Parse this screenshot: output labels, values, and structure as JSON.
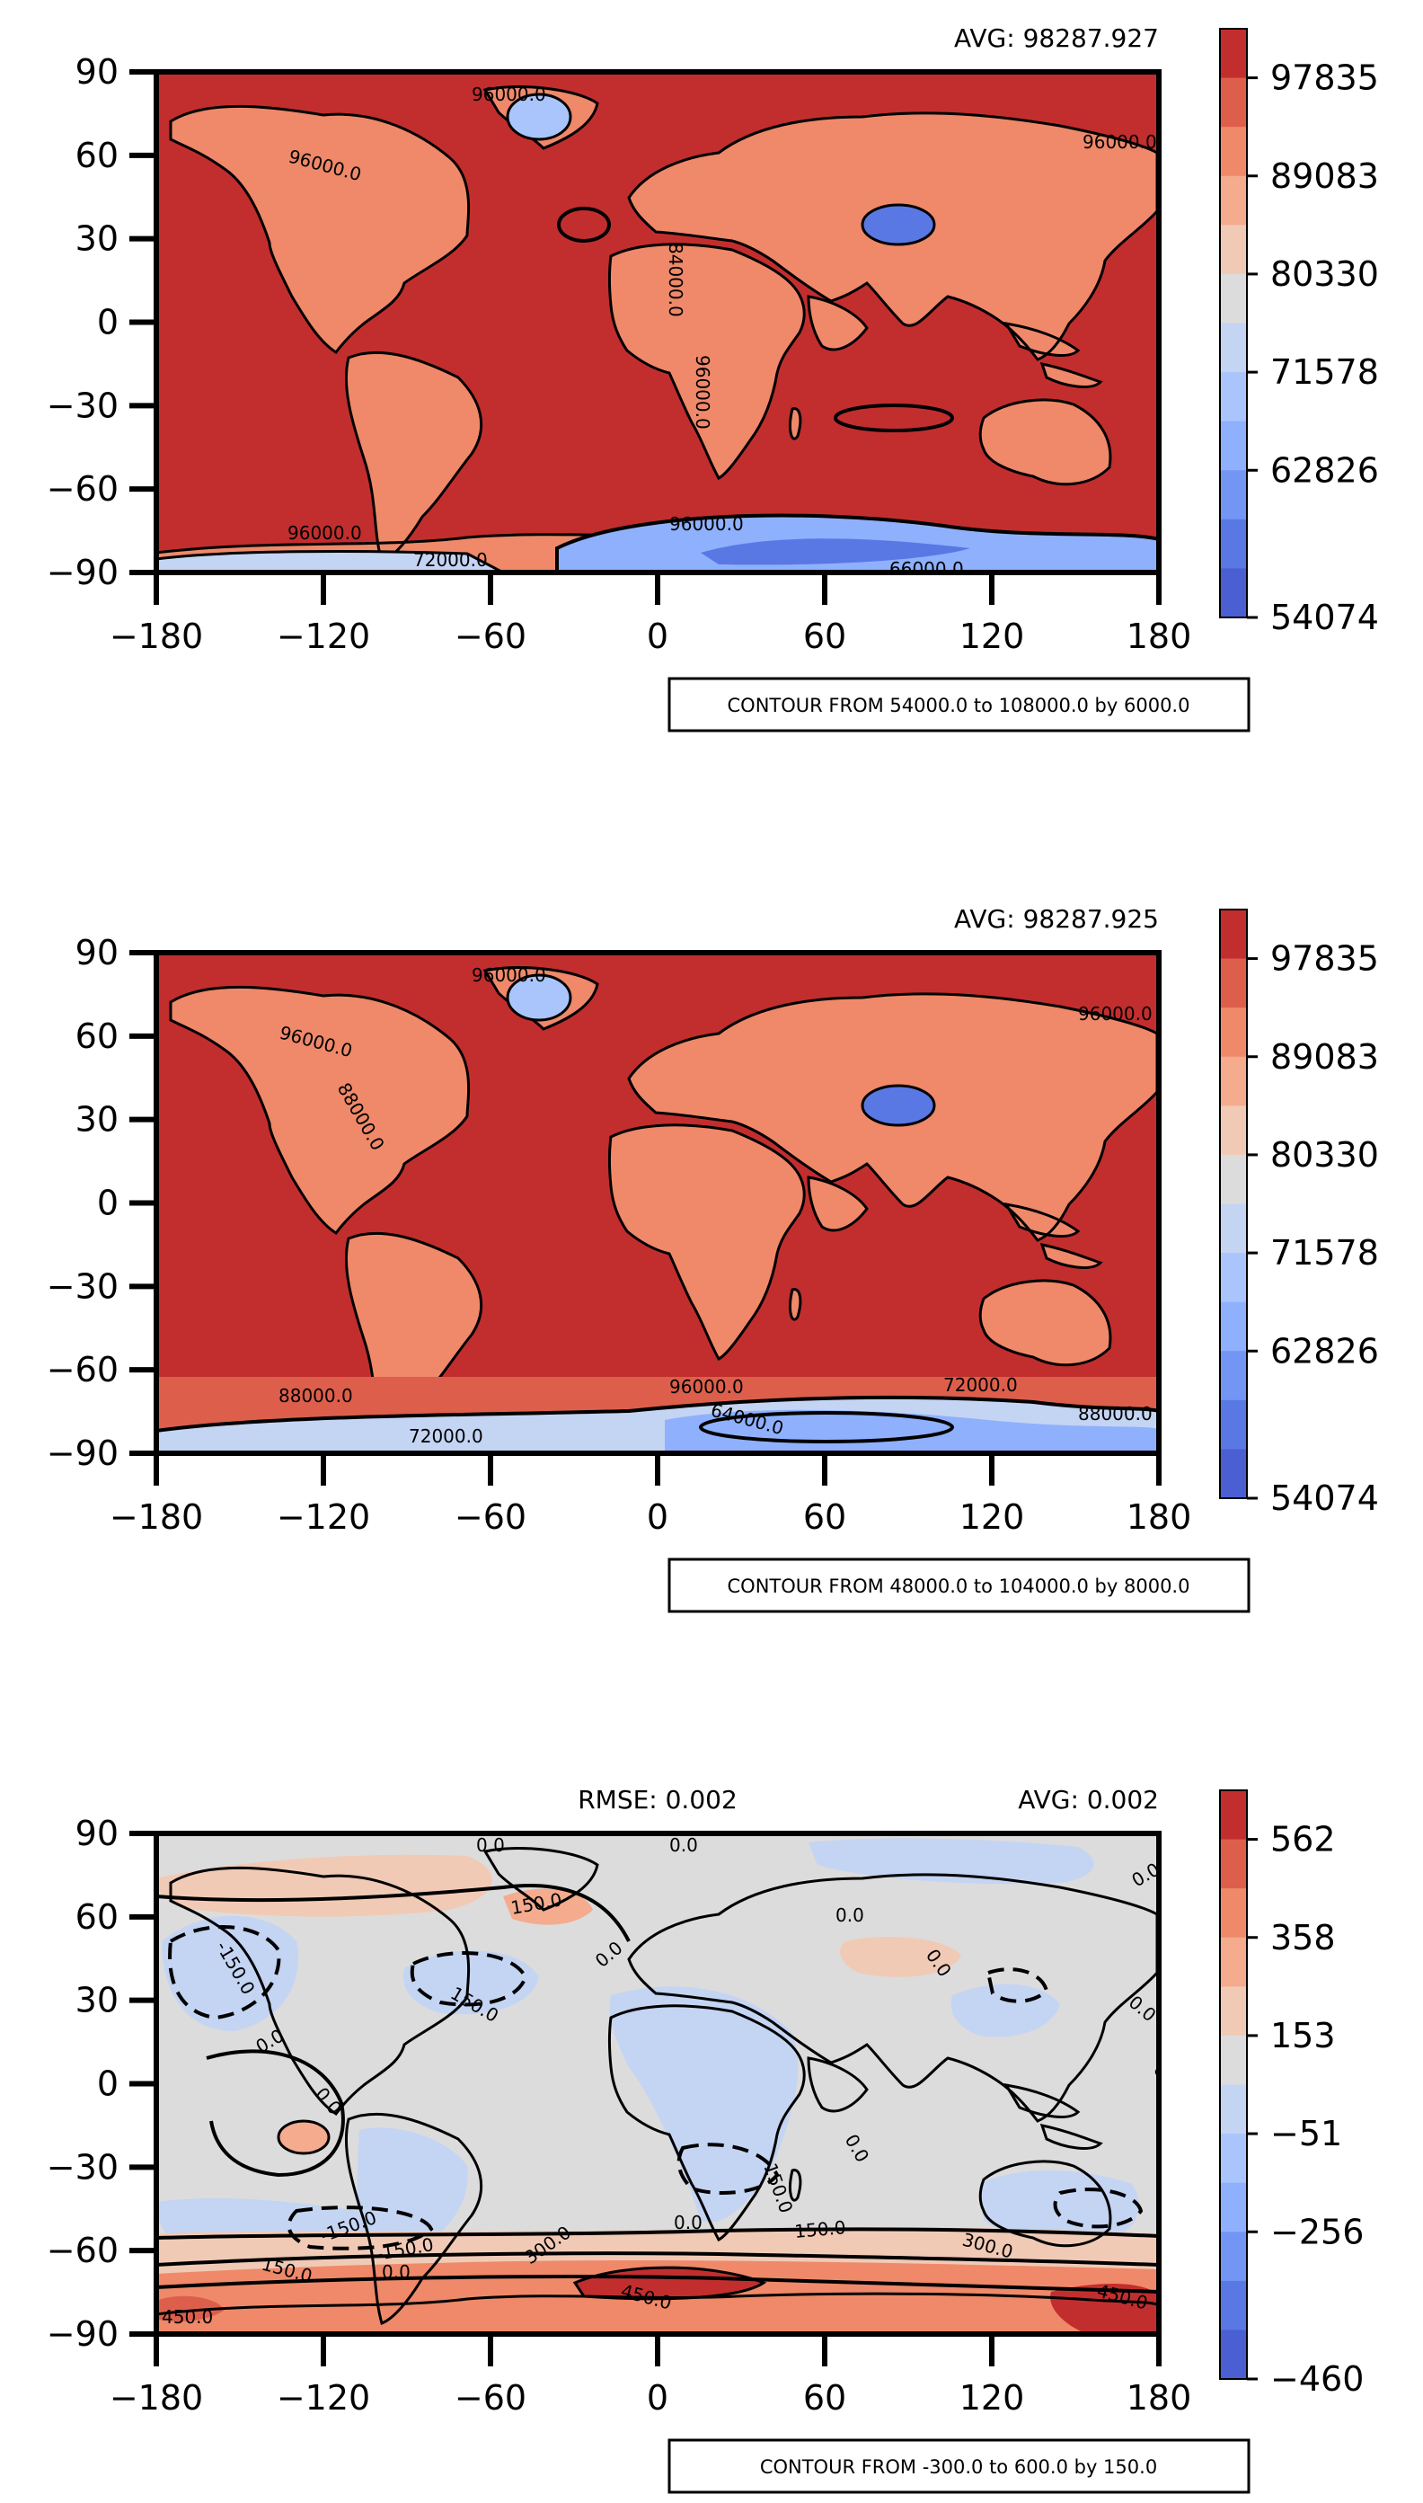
{
  "chart_data": [
    {
      "type": "heatmap",
      "subtype": "filled-contour world map",
      "title_left": "",
      "title_right": "AVG: 98287.927",
      "xlim": [
        -180,
        180
      ],
      "ylim": [
        -90,
        90
      ],
      "xticks": [
        "−180",
        "−120",
        "−60",
        "0",
        "60",
        "120",
        "180"
      ],
      "yticks": [
        "90",
        "60",
        "30",
        "0",
        "−30",
        "−60",
        "−90"
      ],
      "colorbar_ticks": [
        "97835",
        "89083",
        "80330",
        "71578",
        "62826",
        "54074"
      ],
      "colorbar_colors": [
        "#c22e2e",
        "#dd5f4b",
        "#ef896a",
        "#f4ab8e",
        "#f1cab6",
        "#dcdcdc",
        "#c4d4f3",
        "#a9c5fc",
        "#8fb0fd",
        "#7396f5",
        "#5a78e4",
        "#4a5fd2"
      ],
      "contour_caption": "CONTOUR FROM 54000.0 to 108000.0 by 6000.0",
      "contour_labels": [
        "96000.0",
        "96000.0",
        "96000.0",
        "96000.0",
        "96000.0",
        "66000.0",
        "72000.0",
        "84000.0",
        "96000.0"
      ]
    },
    {
      "type": "heatmap",
      "subtype": "filled-contour world map",
      "title_left": "",
      "title_right": "AVG: 98287.925",
      "xlim": [
        -180,
        180
      ],
      "ylim": [
        -90,
        90
      ],
      "xticks": [
        "−180",
        "−120",
        "−60",
        "0",
        "60",
        "120",
        "180"
      ],
      "yticks": [
        "90",
        "60",
        "30",
        "0",
        "−30",
        "−60",
        "−90"
      ],
      "colorbar_ticks": [
        "97835",
        "89083",
        "80330",
        "71578",
        "62826",
        "54074"
      ],
      "colorbar_colors": [
        "#c22e2e",
        "#dd5f4b",
        "#ef896a",
        "#f4ab8e",
        "#f1cab6",
        "#dcdcdc",
        "#c4d4f3",
        "#a9c5fc",
        "#8fb0fd",
        "#7396f5",
        "#5a78e4",
        "#4a5fd2"
      ],
      "contour_caption": "CONTOUR FROM 48000.0 to 104000.0 by 8000.0",
      "contour_labels": [
        "96000.0",
        "96000.0",
        "96000.0",
        "88000.0",
        "88000.0",
        "96000.0",
        "64000.0",
        "72000.0",
        "72000.0",
        "88000.0"
      ]
    },
    {
      "type": "heatmap",
      "subtype": "filled-contour world map (difference)",
      "title_left": "RMSE: 0.002",
      "title_right": "AVG: 0.002",
      "xlim": [
        -180,
        180
      ],
      "ylim": [
        -90,
        90
      ],
      "xticks": [
        "−180",
        "−120",
        "−60",
        "0",
        "60",
        "120",
        "180"
      ],
      "yticks": [
        "90",
        "60",
        "30",
        "0",
        "−30",
        "−60",
        "−90"
      ],
      "colorbar_ticks": [
        "562",
        "358",
        "153",
        "−51",
        "−256",
        "−460"
      ],
      "colorbar_colors": [
        "#c22e2e",
        "#dd5f4b",
        "#ef896a",
        "#f4ab8e",
        "#f1cab6",
        "#dcdcdc",
        "#c4d4f3",
        "#a9c5fc",
        "#8fb0fd",
        "#7396f5",
        "#5a78e4",
        "#4a5fd2"
      ],
      "contour_caption": "CONTOUR FROM -300.0 to 600.0 by 150.0",
      "contour_labels": [
        "0.0",
        "0.0",
        "150.0",
        "-150.0",
        "150.0",
        "0.0",
        "0.0",
        "0.0",
        "0.0",
        "0.0",
        "0.0",
        "-150.0",
        "150.0",
        "0.0",
        "300.0",
        "450.0",
        "150.0",
        "300.0",
        "450.0",
        "450.0",
        "0.0",
        "0.0",
        "150.0",
        "0.0",
        "0.0",
        "-150.0"
      ]
    }
  ]
}
